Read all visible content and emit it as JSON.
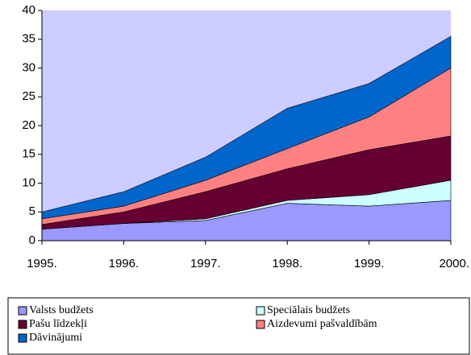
{
  "chart_data": {
    "type": "stacked_area",
    "categories": [
      "1995.",
      "1996.",
      "1997.",
      "1998.",
      "1999.",
      "2000."
    ],
    "series": [
      {
        "name": "Valsts budžets",
        "color": "#9999ff",
        "values": [
          2,
          3,
          3.5,
          6.5,
          6,
          7
        ]
      },
      {
        "name": "Speciālais budžets",
        "color": "#ccffff",
        "values": [
          0,
          0,
          0.3,
          0.5,
          2,
          3.5
        ]
      },
      {
        "name": "Pašu līdzekļi",
        "color": "#660033",
        "values": [
          0.8,
          2,
          4.7,
          5.5,
          7.8,
          7.7
        ]
      },
      {
        "name": "Aizdevumi pašvaldībām",
        "color": "#ff8080",
        "values": [
          1,
          1,
          2,
          3.5,
          5.7,
          11.8
        ]
      },
      {
        "name": "Dāvinājumi",
        "color": "#0066cc",
        "values": [
          1.2,
          2.5,
          4,
          7,
          5.8,
          5.5
        ]
      }
    ],
    "ylim": [
      0,
      40
    ],
    "yticks": [
      0,
      5,
      10,
      15,
      20,
      25,
      30,
      35,
      40
    ],
    "plot_background": "#ccccff"
  }
}
